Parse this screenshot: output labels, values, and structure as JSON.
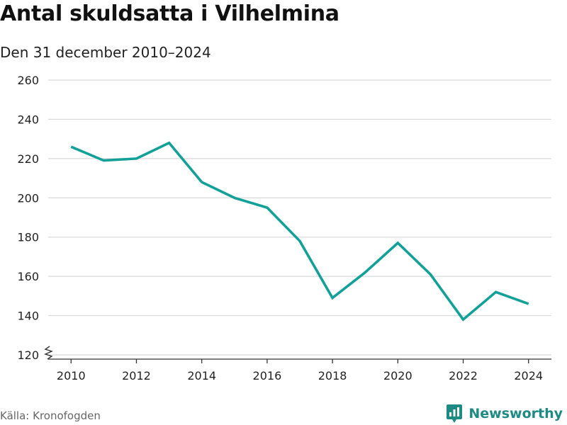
{
  "header": {
    "title": "Antal skuldsatta i Vilhelmina",
    "subtitle": "Den 31 december 2010–2024"
  },
  "footer": {
    "source": "Källa: Kronofogden",
    "brand": "Newsworthy"
  },
  "colors": {
    "line": "#12a098",
    "brand": "#1e8a84",
    "grid": "#d9d9d9",
    "axis": "#333333",
    "tick_text": "#222222"
  },
  "icons": {
    "brand_logo": "newsworthy-logo-icon",
    "axis_break": "axis-break-zigzag-icon"
  },
  "chart_data": {
    "type": "line",
    "title": "Antal skuldsatta i Vilhelmina",
    "subtitle": "Den 31 december 2010–2024",
    "xlabel": "",
    "ylabel": "",
    "x": [
      2010,
      2011,
      2012,
      2013,
      2014,
      2015,
      2016,
      2017,
      2018,
      2019,
      2020,
      2021,
      2022,
      2023,
      2024
    ],
    "series": [
      {
        "values": [
          226,
          219,
          220,
          228,
          208,
          200,
          195,
          178,
          149,
          162,
          177,
          161,
          138,
          152,
          146
        ]
      }
    ],
    "xlim": [
      2009.3,
      2024.7
    ],
    "ylim": [
      120,
      260
    ],
    "x_ticks": [
      2010,
      2012,
      2014,
      2016,
      2018,
      2020,
      2022,
      2024
    ],
    "y_ticks": [
      120,
      140,
      160,
      180,
      200,
      220,
      240,
      260
    ],
    "y_axis_break": true,
    "grid": "horizontal",
    "legend": "none"
  }
}
